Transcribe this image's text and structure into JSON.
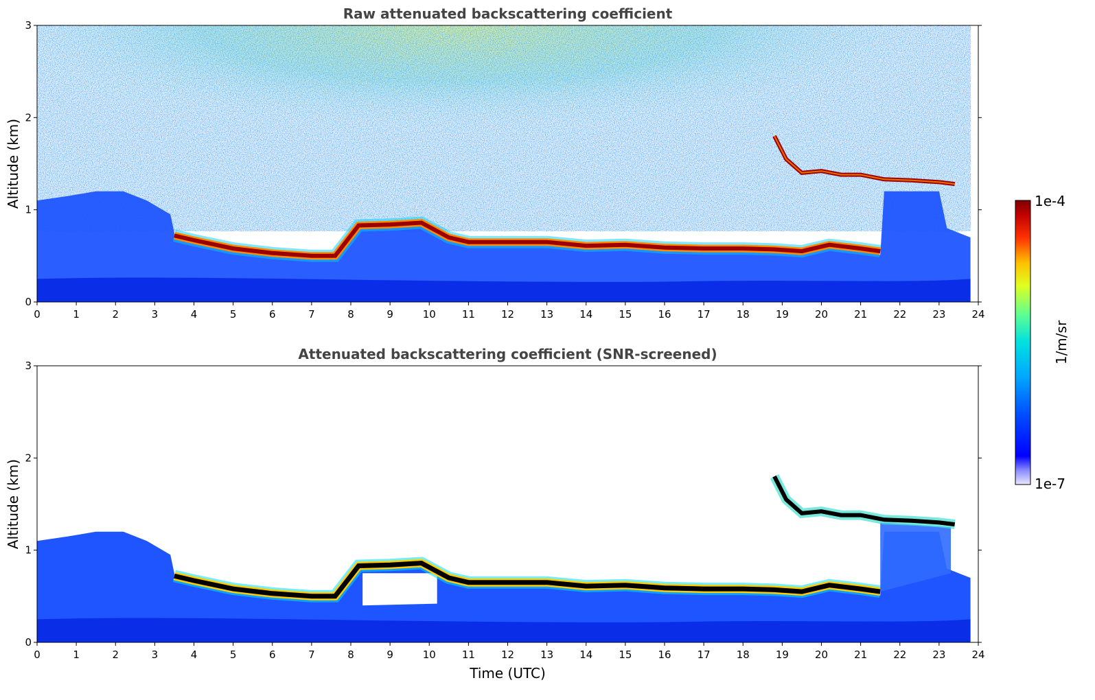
{
  "chart_data": [
    {
      "type": "heatmap",
      "title": "Raw attenuated backscattering coefficient",
      "xlabel": "",
      "ylabel": "Altitude (km)",
      "xlim": [
        0,
        24
      ],
      "ylim": [
        0,
        3
      ],
      "xticks": [
        "0",
        "1",
        "2",
        "3",
        "4",
        "5",
        "6",
        "7",
        "8",
        "9",
        "10",
        "11",
        "12",
        "13",
        "14",
        "15",
        "16",
        "17",
        "18",
        "19",
        "20",
        "21",
        "22",
        "23",
        "24"
      ],
      "yticks": [
        "0",
        "1",
        "2",
        "3"
      ],
      "screened": false,
      "layer_track": [
        {
          "x": 3.5,
          "y": 0.72
        },
        {
          "x": 4.0,
          "y": 0.67
        },
        {
          "x": 5.0,
          "y": 0.58
        },
        {
          "x": 6.0,
          "y": 0.53
        },
        {
          "x": 7.0,
          "y": 0.5
        },
        {
          "x": 7.6,
          "y": 0.5
        },
        {
          "x": 8.2,
          "y": 0.83
        },
        {
          "x": 9.0,
          "y": 0.84
        },
        {
          "x": 9.8,
          "y": 0.86
        },
        {
          "x": 10.5,
          "y": 0.7
        },
        {
          "x": 11.0,
          "y": 0.65
        },
        {
          "x": 12.0,
          "y": 0.65
        },
        {
          "x": 13.0,
          "y": 0.65
        },
        {
          "x": 14.0,
          "y": 0.61
        },
        {
          "x": 15.0,
          "y": 0.62
        },
        {
          "x": 16.0,
          "y": 0.59
        },
        {
          "x": 17.0,
          "y": 0.58
        },
        {
          "x": 18.0,
          "y": 0.58
        },
        {
          "x": 18.8,
          "y": 0.57
        },
        {
          "x": 19.5,
          "y": 0.55
        },
        {
          "x": 20.2,
          "y": 0.62
        },
        {
          "x": 21.0,
          "y": 0.58
        },
        {
          "x": 21.5,
          "y": 0.55
        }
      ],
      "upper_layers": [
        {
          "x": 18.8,
          "y": 1.8
        },
        {
          "x": 19.1,
          "y": 1.55
        },
        {
          "x": 19.5,
          "y": 1.4
        },
        {
          "x": 20.0,
          "y": 1.42
        },
        {
          "x": 20.5,
          "y": 1.38
        },
        {
          "x": 21.0,
          "y": 1.38
        },
        {
          "x": 21.6,
          "y": 1.33
        },
        {
          "x": 22.3,
          "y": 1.32
        },
        {
          "x": 23.0,
          "y": 1.3
        },
        {
          "x": 23.4,
          "y": 1.28
        }
      ]
    },
    {
      "type": "heatmap",
      "title": "Attenuated backscattering coefficient (SNR-screened)",
      "xlabel": "Time (UTC)",
      "ylabel": "Altitude (km)",
      "xlim": [
        0,
        24
      ],
      "ylim": [
        0,
        3
      ],
      "xticks": [
        "0",
        "1",
        "2",
        "3",
        "4",
        "5",
        "6",
        "7",
        "8",
        "9",
        "10",
        "11",
        "12",
        "13",
        "14",
        "15",
        "16",
        "17",
        "18",
        "19",
        "20",
        "21",
        "22",
        "23",
        "24"
      ],
      "yticks": [
        "0",
        "1",
        "2",
        "3"
      ],
      "screened": true
    }
  ],
  "colorbar": {
    "label": "1/m/sr",
    "max_label": "1e-4",
    "min_label": "1e-7",
    "scale": "log",
    "range": [
      1e-07,
      0.0001
    ],
    "colormap": "jet",
    "colors": [
      "#e8e8ff",
      "#3030ff",
      "#0000ff",
      "#0080ff",
      "#00c8ff",
      "#40ffc0",
      "#c0ff40",
      "#ffff00",
      "#ff8000",
      "#ff0000",
      "#800000"
    ]
  }
}
